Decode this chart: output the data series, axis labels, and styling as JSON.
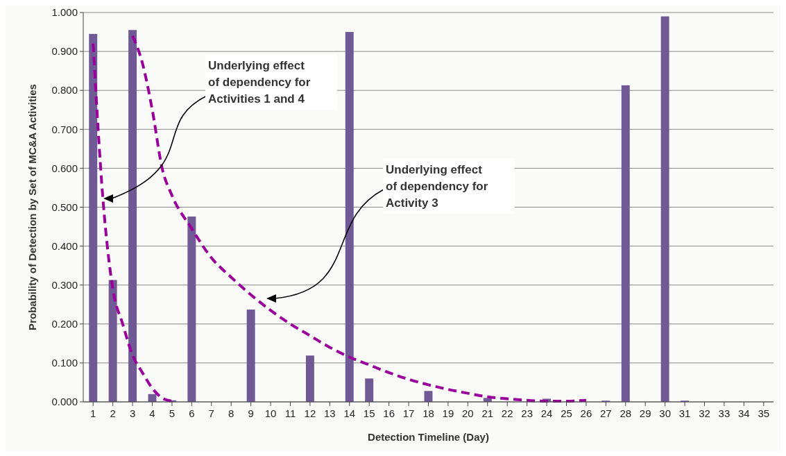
{
  "chart_data": {
    "type": "bar",
    "xlabel": "Detection Timeline (Day)",
    "ylabel": "Probability of Detection by Set of MC&A Activities",
    "x": [
      1,
      2,
      3,
      4,
      5,
      6,
      7,
      8,
      9,
      10,
      11,
      12,
      13,
      14,
      15,
      16,
      17,
      18,
      19,
      20,
      21,
      22,
      23,
      24,
      25,
      26,
      27,
      28,
      29,
      30,
      31,
      32,
      33,
      34,
      35
    ],
    "xlim": [
      0.5,
      35.5
    ],
    "xticks": [
      1,
      2,
      3,
      4,
      5,
      6,
      7,
      8,
      9,
      10,
      11,
      12,
      13,
      14,
      15,
      16,
      17,
      18,
      19,
      20,
      21,
      22,
      23,
      24,
      25,
      26,
      27,
      28,
      29,
      30,
      31,
      32,
      33,
      34,
      35
    ],
    "series": [
      {
        "color": "#6f5a96",
        "values": [
          0.945,
          0.313,
          0.955,
          0.02,
          0.004,
          0.476,
          0,
          0,
          0.237,
          0,
          0,
          0.119,
          0,
          0.95,
          0.06,
          0,
          0,
          0.028,
          0,
          0,
          0.01,
          0,
          0,
          0.008,
          0,
          0,
          0.003,
          0.813,
          0,
          0.99,
          0.003,
          0,
          0,
          0,
          0
        ]
      },
      {
        "type": "line",
        "color": "#990099",
        "line_style": "dashed",
        "x": [
          1,
          1.5,
          2,
          2.5,
          3,
          3.5,
          4,
          4.5,
          5
        ],
        "values": [
          0.92,
          0.52,
          0.29,
          0.2,
          0.12,
          0.075,
          0.035,
          0.01,
          0.002
        ]
      },
      {
        "type": "line",
        "color": "#990099",
        "line_style": "dashed",
        "x": [
          3,
          3.5,
          4,
          4.5,
          5,
          6,
          7,
          8,
          9,
          10,
          11,
          12,
          13,
          14,
          15,
          16,
          17,
          18,
          19,
          20,
          21,
          22,
          23,
          24,
          25,
          26
        ],
        "values": [
          0.94,
          0.87,
          0.75,
          0.6,
          0.53,
          0.445,
          0.37,
          0.32,
          0.275,
          0.235,
          0.2,
          0.17,
          0.14,
          0.115,
          0.095,
          0.075,
          0.058,
          0.044,
          0.032,
          0.022,
          0.013,
          0.008,
          0.004,
          0.002,
          0.002,
          0.004
        ]
      }
    ],
    "ylim": [
      0,
      1
    ],
    "yticks": [
      {
        "value": 0,
        "label": "0.000"
      },
      {
        "value": 0.1,
        "label": "0.100"
      },
      {
        "value": 0.2,
        "label": "0.200"
      },
      {
        "value": 0.3,
        "label": "0.300"
      },
      {
        "value": 0.4,
        "label": "0.400"
      },
      {
        "value": 0.5,
        "label": "0.500"
      },
      {
        "value": 0.6,
        "label": "0.600"
      },
      {
        "value": 0.7,
        "label": "0.700"
      },
      {
        "value": 0.8,
        "label": "0.800"
      },
      {
        "value": 0.9,
        "label": "0.900"
      },
      {
        "value": 1,
        "label": "1.000"
      }
    ],
    "grid": "y",
    "annotations": [
      "Underlying effect of dependency for Activities 1 and 4",
      "Underlying effect of dependency for Activity 3"
    ]
  }
}
